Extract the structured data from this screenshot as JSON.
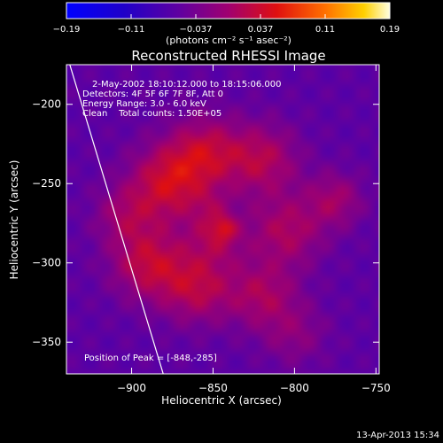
{
  "chart_data": {
    "type": "heatmap",
    "title": "Reconstructed RHESSI Image",
    "xlabel": "Heliocentric X (arcsec)",
    "ylabel": "Heliocentric Y (arcsec)",
    "xlim": [
      -940,
      -748
    ],
    "ylim": [
      -370,
      -175
    ],
    "x_ticks": [
      -900,
      -850,
      -800,
      -750
    ],
    "y_ticks": [
      -200,
      -250,
      -300,
      -350
    ],
    "colorbar": {
      "ticks": [
        "-0.19",
        "-0.11",
        "-0.037",
        "0.037",
        "0.11",
        "0.19"
      ],
      "min": -0.19,
      "max": 0.19,
      "unit_label": "(photons cm⁻² s⁻¹ asec⁻²)"
    },
    "info_lines": [
      "2-May-2002 18:10:12.000 to 18:15:06.000",
      "Detectors: 4F 5F 6F 7F 8F, Att 0",
      "Energy Range: 3.0 - 6.0 keV",
      "Clean    Total counts: 1.50E+05"
    ],
    "peak_text": "Position of Peak = [-848,-285]",
    "peak": [
      -848,
      -285
    ],
    "limb_line": {
      "x": [
        -940,
        -880
      ],
      "y": [
        -168,
        -372
      ]
    },
    "emission_components": [
      {
        "x": -848,
        "y": -283,
        "amp": 0.06,
        "sigma": 12
      },
      {
        "x": -843,
        "y": -278,
        "amp": 0.05,
        "sigma": 5
      },
      {
        "x": -852,
        "y": -265,
        "amp": 0.025,
        "sigma": 8
      },
      {
        "x": -878,
        "y": -250,
        "amp": 0.095,
        "sigma": 17
      },
      {
        "x": -890,
        "y": -300,
        "amp": 0.085,
        "sigma": 16
      },
      {
        "x": -860,
        "y": -315,
        "amp": 0.08,
        "sigma": 16
      },
      {
        "x": -855,
        "y": -230,
        "amp": 0.08,
        "sigma": 16
      },
      {
        "x": -820,
        "y": -235,
        "amp": 0.075,
        "sigma": 16
      },
      {
        "x": -805,
        "y": -280,
        "amp": 0.07,
        "sigma": 16
      },
      {
        "x": -820,
        "y": -320,
        "amp": 0.065,
        "sigma": 15
      },
      {
        "x": -775,
        "y": -260,
        "amp": 0.06,
        "sigma": 12
      },
      {
        "x": -800,
        "y": -345,
        "amp": 0.04,
        "sigma": 14
      },
      {
        "x": -905,
        "y": -270,
        "amp": 0.05,
        "sigma": 13
      }
    ],
    "background_level": -0.06
  },
  "footer": {
    "timestamp": "13-Apr-2013 15:34"
  }
}
